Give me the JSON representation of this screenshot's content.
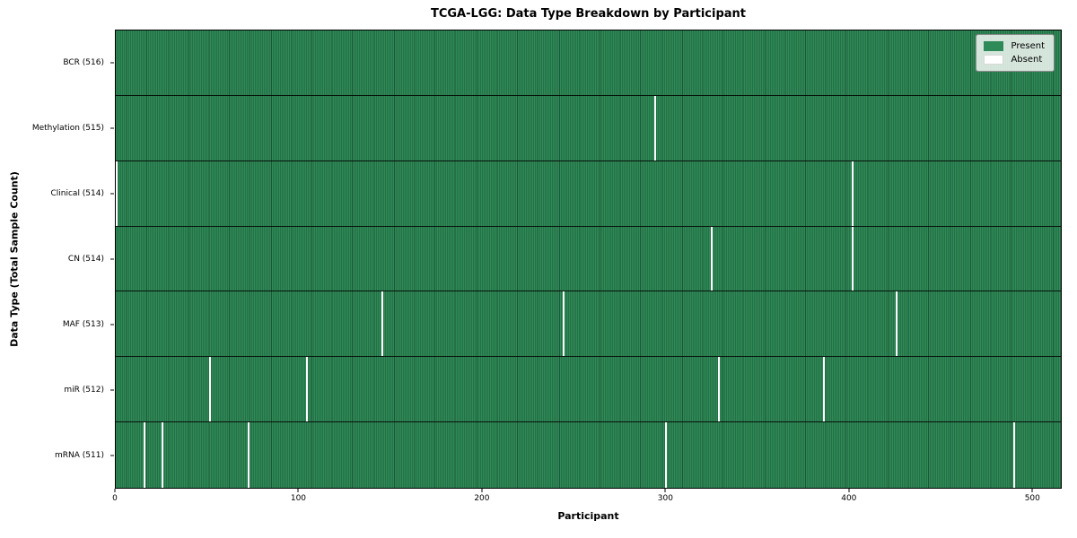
{
  "colors": {
    "present": "#2e8b57",
    "present_stripe_dark": "#1e5537",
    "absent": "#ffffff",
    "row_divider": "#000000",
    "axis": "#000000",
    "legend_border": "#8a8a8a"
  },
  "chart_data": {
    "type": "heatmap",
    "title": "TCGA-LGG: Data Type Breakdown by Participant",
    "xlabel": "Participant",
    "ylabel": "Data Type (Total Sample Count)",
    "x_range": [
      0,
      516
    ],
    "x_ticks": [
      0,
      100,
      200,
      300,
      400,
      500
    ],
    "n_participants": 516,
    "grid": false,
    "legend_position": "upper right",
    "legend": [
      {
        "label": "Present",
        "color": "#2e8b57"
      },
      {
        "label": "Absent",
        "color": "#ffffff"
      }
    ],
    "rows": [
      {
        "label": "BCR (516)",
        "data_type": "BCR",
        "present_count": 516,
        "absent_participants": []
      },
      {
        "label": "Methylation (515)",
        "data_type": "Methylation",
        "present_count": 515,
        "absent_participants": [
          294
        ]
      },
      {
        "label": "Clinical (514)",
        "data_type": "Clinical",
        "present_count": 514,
        "absent_participants": [
          0,
          402
        ]
      },
      {
        "label": "CN (514)",
        "data_type": "CN",
        "present_count": 514,
        "absent_participants": [
          325,
          402
        ]
      },
      {
        "label": "MAF (513)",
        "data_type": "MAF",
        "present_count": 513,
        "absent_participants": [
          145,
          244,
          426
        ]
      },
      {
        "label": "miR (512)",
        "data_type": "miR",
        "present_count": 512,
        "absent_participants": [
          51,
          104,
          329,
          386
        ]
      },
      {
        "label": "mRNA (511)",
        "data_type": "mRNA",
        "present_count": 511,
        "absent_participants": [
          15,
          25,
          72,
          300,
          490
        ]
      }
    ]
  }
}
